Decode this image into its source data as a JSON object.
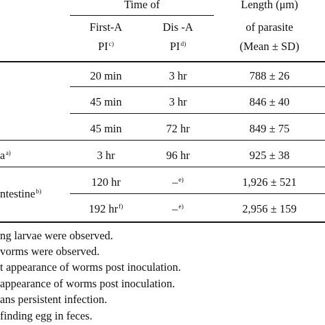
{
  "header": {
    "time_group": "Time of",
    "length_line1": "Length (μm)",
    "first_a_line1": "First-A",
    "first_a_line2": "PI",
    "first_a_sup": "c)",
    "dis_a_line1": "Dis -A",
    "dis_a_line2": "PI",
    "dis_a_sup": "d)",
    "length_line2": "of parasite",
    "length_line3": "(Mean ± SD)"
  },
  "rows": [
    {
      "label": "",
      "label_sup": "",
      "first": "20 min",
      "first_sup": "",
      "dis": "3 hr",
      "dis_sup": "",
      "length": "788 ± 26"
    },
    {
      "label": "",
      "label_sup": "",
      "first": "45 min",
      "first_sup": "",
      "dis": "3 hr",
      "dis_sup": "",
      "length": "846 ± 40"
    },
    {
      "label": "",
      "label_sup": "",
      "first": "45 min",
      "first_sup": "",
      "dis": "72 hr",
      "dis_sup": "",
      "length": "849 ± 75"
    },
    {
      "label": "a",
      "label_sup": "a)",
      "first": "3 hr",
      "first_sup": "",
      "dis": "96 hr",
      "dis_sup": "",
      "length": "925 ± 38"
    },
    {
      "label": "ntestine",
      "label_sup": "b)",
      "first": "120 hr",
      "first_sup": "",
      "dis": "–",
      "dis_sup": "e)",
      "length": "1,926 ± 521"
    },
    {
      "label": "",
      "label_sup": "",
      "first": "192 hr",
      "first_sup": "f)",
      "dis": "–",
      "dis_sup": "e)",
      "length": "2,956 ± 159"
    }
  ],
  "footnotes": [
    "ng larvae were observed.",
    "vorms were observed.",
    "t appearance of worms post inoculation.",
    "appearance of worms post inoculation.",
    "ans persistent infection.",
    "finding egg in feces."
  ]
}
